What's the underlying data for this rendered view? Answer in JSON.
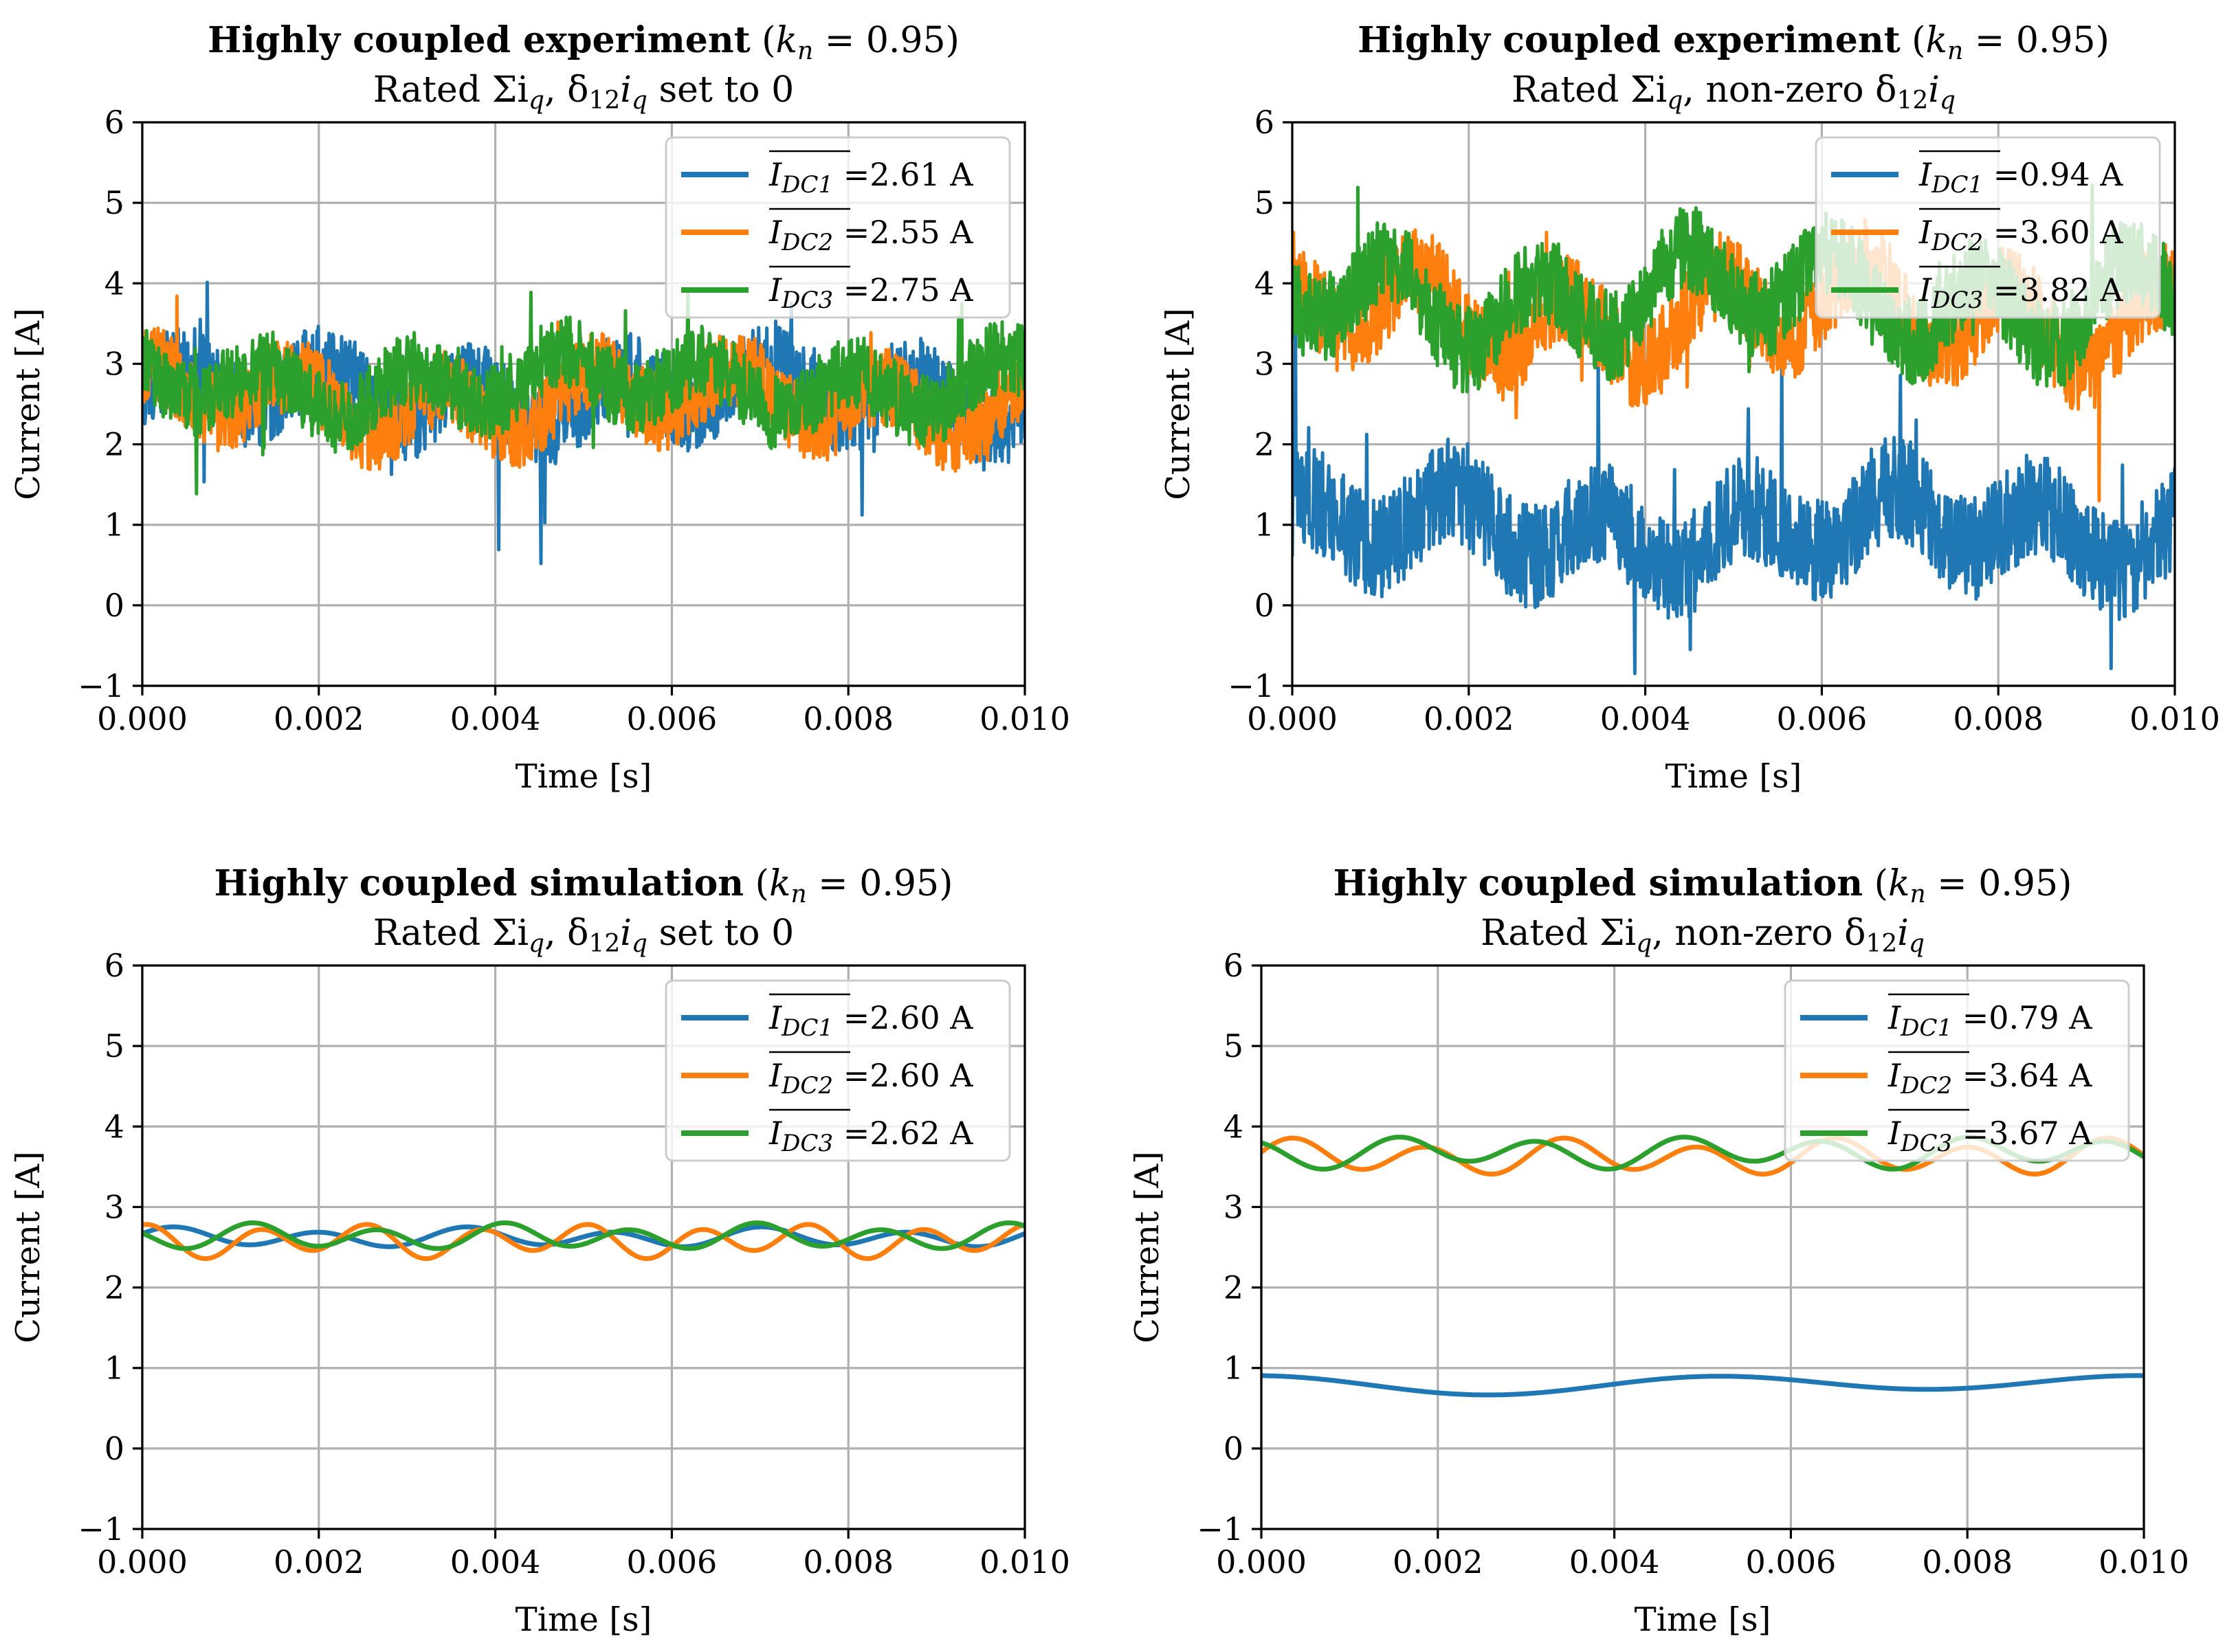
{
  "chart_data": [
    {
      "type": "line",
      "title_bold": "Highly coupled experiment",
      "title_kn": "0.95",
      "subtitle_prefix": "Rated Σi",
      "subtitle_mid": ", δ",
      "subtitle_suffix": " set to 0",
      "xlabel": "Time [s]",
      "ylabel": "Current [A]",
      "xlim": [
        0,
        0.01
      ],
      "ylim": [
        -1,
        6
      ],
      "xticks": [
        "0.000",
        "0.002",
        "0.004",
        "0.006",
        "0.008",
        "0.010"
      ],
      "yticks": [
        "−1",
        "0",
        "1",
        "2",
        "3",
        "4",
        "5",
        "6"
      ],
      "grid": true,
      "legend": "top-right",
      "series": [
        {
          "name": "I_DC1",
          "label_sub": "DC1",
          "mean": "2.61",
          "unit": "A",
          "color": "#1f77b4",
          "kind": "noisy",
          "base": 2.61,
          "osc": 0.3,
          "noise": 0.5,
          "spikes": 0.9
        },
        {
          "name": "I_DC2",
          "label_sub": "DC2",
          "mean": "2.55",
          "unit": "A",
          "color": "#ff7f0e",
          "kind": "noisy",
          "base": 2.55,
          "osc": 0.3,
          "noise": 0.48,
          "spikes": 0.7
        },
        {
          "name": "I_DC3",
          "label_sub": "DC3",
          "mean": "2.75",
          "unit": "A",
          "color": "#2ca02c",
          "kind": "noisy",
          "base": 2.75,
          "osc": 0.28,
          "noise": 0.46,
          "spikes": 0.6
        }
      ]
    },
    {
      "type": "line",
      "title_bold": "Highly coupled experiment",
      "title_kn": "0.95",
      "subtitle_prefix": "Rated Σi",
      "subtitle_mid": ", non-zero δ",
      "subtitle_suffix": "",
      "xlabel": "Time [s]",
      "ylabel": "Current [A]",
      "xlim": [
        0,
        0.01
      ],
      "ylim": [
        -1,
        6
      ],
      "xticks": [
        "0.000",
        "0.002",
        "0.004",
        "0.006",
        "0.008",
        "0.010"
      ],
      "yticks": [
        "−1",
        "0",
        "1",
        "2",
        "3",
        "4",
        "5",
        "6"
      ],
      "grid": true,
      "legend": "top-right",
      "series": [
        {
          "name": "I_DC1",
          "label_sub": "DC1",
          "mean": "0.94",
          "unit": "A",
          "color": "#1f77b4",
          "kind": "noisy",
          "base": 0.94,
          "osc": 0.35,
          "noise": 0.65,
          "spikes": 1.2
        },
        {
          "name": "I_DC2",
          "label_sub": "DC2",
          "mean": "3.60",
          "unit": "A",
          "color": "#ff7f0e",
          "kind": "noisy",
          "base": 3.6,
          "osc": 0.45,
          "noise": 0.55,
          "spikes": 0.9
        },
        {
          "name": "I_DC3",
          "label_sub": "DC3",
          "mean": "3.82",
          "unit": "A",
          "color": "#2ca02c",
          "kind": "noisy",
          "base": 3.82,
          "osc": 0.45,
          "noise": 0.55,
          "spikes": 0.8
        }
      ]
    },
    {
      "type": "line",
      "title_bold": "Highly coupled simulation",
      "title_kn": "0.95",
      "subtitle_prefix": "Rated Σi",
      "subtitle_mid": ", δ",
      "subtitle_suffix": " set to 0",
      "xlabel": "Time [s]",
      "ylabel": "Current [A]",
      "xlim": [
        0,
        0.01
      ],
      "ylim": [
        -1,
        6
      ],
      "xticks": [
        "0.000",
        "0.002",
        "0.004",
        "0.006",
        "0.008",
        "0.010"
      ],
      "yticks": [
        "−1",
        "0",
        "1",
        "2",
        "3",
        "4",
        "5",
        "6"
      ],
      "grid": true,
      "legend": "top-right",
      "series": [
        {
          "name": "I_DC1",
          "label_sub": "DC1",
          "mean": "2.60",
          "unit": "A",
          "color": "#1f77b4",
          "kind": "smooth",
          "base": 2.62,
          "amp": 0.1,
          "freq": 600,
          "phase": 0.3
        },
        {
          "name": "I_DC2",
          "label_sub": "DC2",
          "mean": "2.60",
          "unit": "A",
          "color": "#ff7f0e",
          "kind": "smooth",
          "base": 2.58,
          "amp": 0.17,
          "freq": 800,
          "phase": 1.2
        },
        {
          "name": "I_DC3",
          "label_sub": "DC3",
          "mean": "2.62",
          "unit": "A",
          "color": "#2ca02c",
          "kind": "smooth",
          "base": 2.63,
          "amp": 0.13,
          "freq": 700,
          "phase": 2.4
        }
      ]
    },
    {
      "type": "line",
      "title_bold": "Highly coupled simulation",
      "title_kn": "0.95",
      "subtitle_prefix": "Rated Σi",
      "subtitle_mid": ", non-zero δ",
      "subtitle_suffix": "",
      "xlabel": "Time [s]",
      "ylabel": "Current [A]",
      "xlim": [
        0,
        0.01
      ],
      "ylim": [
        -1,
        6
      ],
      "xticks": [
        "0.000",
        "0.002",
        "0.004",
        "0.006",
        "0.008",
        "0.010"
      ],
      "yticks": [
        "−1",
        "0",
        "1",
        "2",
        "3",
        "4",
        "5",
        "6"
      ],
      "grid": true,
      "legend": "top-right",
      "series": [
        {
          "name": "I_DC1",
          "label_sub": "DC1",
          "mean": "0.79",
          "unit": "A",
          "color": "#1f77b4",
          "kind": "smooth",
          "base": 0.8,
          "amp": 0.1,
          "freq": 200,
          "phase": 1.5
        },
        {
          "name": "I_DC2",
          "label_sub": "DC2",
          "mean": "3.64",
          "unit": "A",
          "color": "#ff7f0e",
          "kind": "smooth",
          "base": 3.62,
          "amp": 0.18,
          "freq": 650,
          "phase": 0.2
        },
        {
          "name": "I_DC3",
          "label_sub": "DC3",
          "mean": "3.67",
          "unit": "A",
          "color": "#2ca02c",
          "kind": "smooth",
          "base": 3.68,
          "amp": 0.16,
          "freq": 620,
          "phase": 1.9
        }
      ]
    }
  ]
}
